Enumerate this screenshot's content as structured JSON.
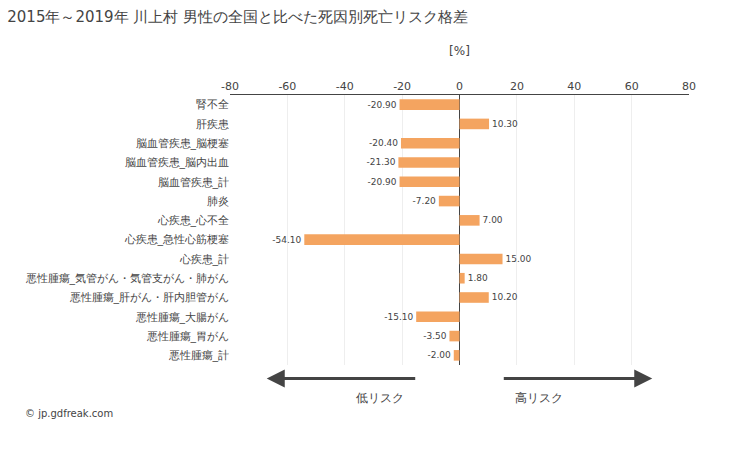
{
  "chart_data": {
    "type": "bar",
    "orientation": "horizontal",
    "title": "2015年～2019年 川上村 男性の全国と比べた死因別死亡リスク格差",
    "xlabel": "[%]",
    "categories": [
      "悪性腫瘍_計",
      "悪性腫瘍_胃がん",
      "悪性腫瘍_大腸がん",
      "悪性腫瘍_肝がん・肝内胆管がん",
      "悪性腫瘍_気管がん・気管支がん・肺がん",
      "心疾患_計",
      "心疾患_急性心筋梗塞",
      "心疾患_心不全",
      "肺炎",
      "脳血管疾患_計",
      "脳血管疾患_脳内出血",
      "脳血管疾患_脳梗塞",
      "肝疾患",
      "腎不全"
    ],
    "values": [
      -2.0,
      -3.5,
      -15.1,
      10.2,
      1.8,
      15.0,
      -54.1,
      7.0,
      -7.2,
      -20.9,
      -21.3,
      -20.4,
      10.3,
      -20.9
    ],
    "value_labels": [
      "-2.00",
      "-3.50",
      "-15.10",
      "10.20",
      "1.80",
      "15.00",
      "-54.10",
      "7.00",
      "-7.20",
      "-20.90",
      "-21.30",
      "-20.40",
      "10.30",
      "-20.90"
    ],
    "data_labels": true,
    "color": "#F4A460",
    "xlim": [
      -80,
      80
    ],
    "xticks": [
      -80,
      -60,
      -40,
      -20,
      0,
      20,
      40,
      60,
      80
    ],
    "grid": true,
    "annotations": [
      "低リスク",
      "高リスク",
      "© jp.gdfreak.com"
    ]
  }
}
